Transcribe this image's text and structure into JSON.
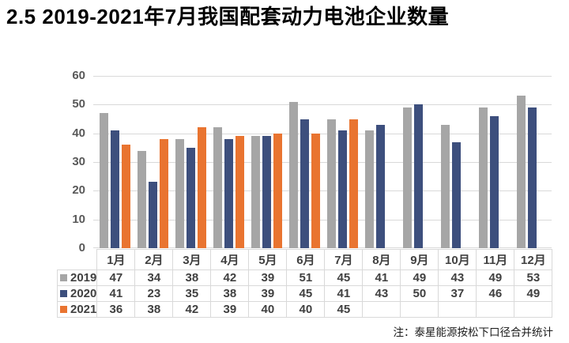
{
  "title": "2.5 2019-2021年7月我国配套动力电池企业数量",
  "note": "注：泰星能源按松下口径合并统计",
  "colors": {
    "series_2019": "#A6A6A6",
    "series_2020": "#3D4F7D",
    "series_2021": "#E97430",
    "gridline": "#D9D9D9",
    "axis_label": "#595959",
    "table_text": "#404040",
    "table_border": "#D9D9D9",
    "title_text": "#000000"
  },
  "chart_data": {
    "type": "bar",
    "title": "2.5 2019-2021年7月我国配套动力电池企业数量",
    "categories": [
      "1月",
      "2月",
      "3月",
      "4月",
      "5月",
      "6月",
      "7月",
      "8月",
      "9月",
      "10月",
      "11月",
      "12月"
    ],
    "series": [
      {
        "name": "2019",
        "color": "#A6A6A6",
        "values": [
          47,
          34,
          38,
          42,
          39,
          51,
          45,
          41,
          49,
          43,
          49,
          53
        ]
      },
      {
        "name": "2020",
        "color": "#3D4F7D",
        "values": [
          41,
          23,
          35,
          38,
          39,
          45,
          41,
          43,
          50,
          37,
          46,
          49
        ]
      },
      {
        "name": "2021",
        "color": "#E97430",
        "values": [
          36,
          38,
          42,
          39,
          40,
          40,
          45,
          null,
          null,
          null,
          null,
          null
        ]
      }
    ],
    "xlabel": "",
    "ylabel": "",
    "ylim": [
      0,
      60
    ],
    "yticks": [
      0,
      10,
      20,
      30,
      40,
      50,
      60
    ],
    "grid": true,
    "legend_position": "table-left",
    "footnote": "注：泰星能源按松下口径合并统计"
  }
}
